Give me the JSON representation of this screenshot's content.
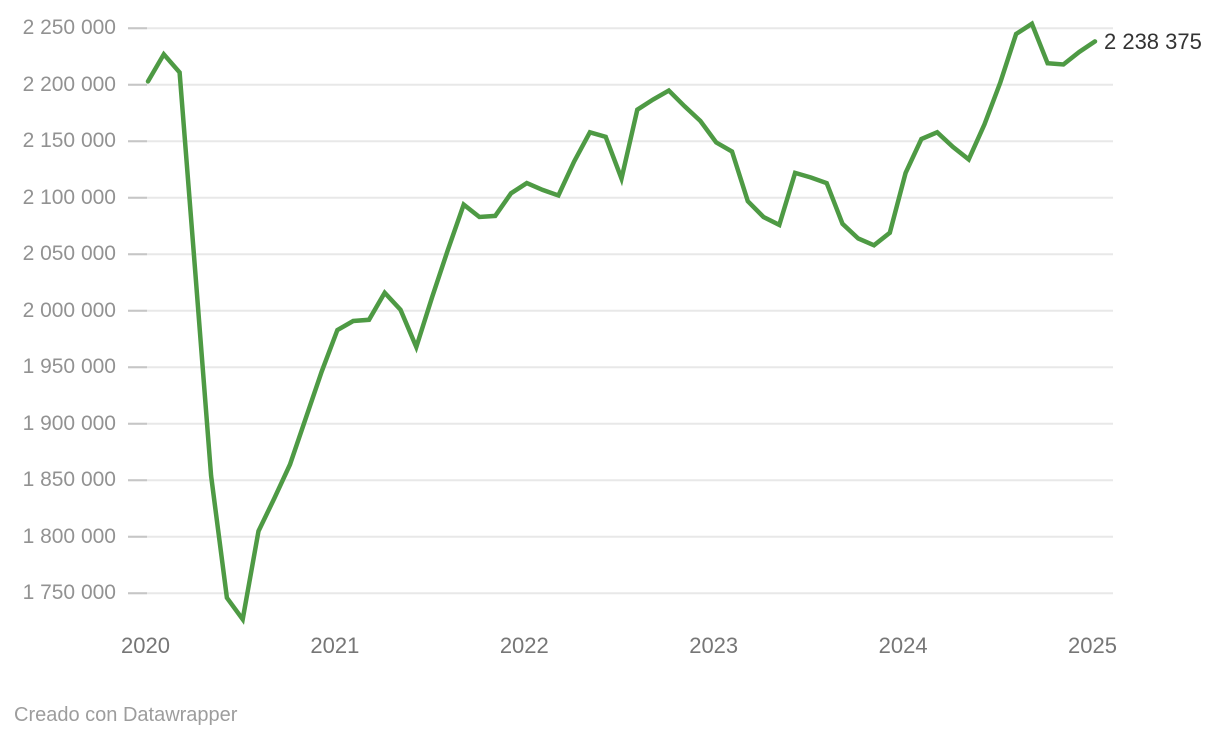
{
  "chart_data": {
    "type": "line",
    "title": "",
    "xlabel": "",
    "ylabel": "",
    "legend": "none",
    "grid": "horizontal",
    "line_color": "#4e9a44",
    "gridline_color": "#e8e8e8",
    "tick_stub_color": "#c6c6c6",
    "ylim": [
      1725000,
      2258000
    ],
    "end_value_label": "2 238 375",
    "end_value": 2238375,
    "y_ticks": [
      {
        "label": "2 250 000",
        "value": 2250000
      },
      {
        "label": "2 200 000",
        "value": 2200000
      },
      {
        "label": "2 150 000",
        "value": 2150000
      },
      {
        "label": "2 100 000",
        "value": 2100000
      },
      {
        "label": "2 050 000",
        "value": 2050000
      },
      {
        "label": "2 000 000",
        "value": 2000000
      },
      {
        "label": "1 950 000",
        "value": 1950000
      },
      {
        "label": "1 900 000",
        "value": 1900000
      },
      {
        "label": "1 850 000",
        "value": 1850000
      },
      {
        "label": "1 800 000",
        "value": 1800000
      },
      {
        "label": "1 750 000",
        "value": 1750000
      }
    ],
    "x_ticks": [
      {
        "label": "2020",
        "month_index": 0
      },
      {
        "label": "2021",
        "month_index": 12
      },
      {
        "label": "2022",
        "month_index": 24
      },
      {
        "label": "2023",
        "month_index": 36
      },
      {
        "label": "2024",
        "month_index": 48
      },
      {
        "label": "2025",
        "month_index": 60
      }
    ],
    "points": [
      [
        "2020-01",
        2203000
      ],
      [
        "2020-02",
        2227000
      ],
      [
        "2020-03",
        2211000
      ],
      [
        "2020-04",
        2034000
      ],
      [
        "2020-05",
        1854000
      ],
      [
        "2020-06",
        1746000
      ],
      [
        "2020-07",
        1727000
      ],
      [
        "2020-08",
        1805000
      ],
      [
        "2020-09",
        1834000
      ],
      [
        "2020-10",
        1864000
      ],
      [
        "2020-11",
        1905000
      ],
      [
        "2020-12",
        1946000
      ],
      [
        "2021-01",
        1983000
      ],
      [
        "2021-02",
        1991000
      ],
      [
        "2021-03",
        1992000
      ],
      [
        "2021-04",
        2016000
      ],
      [
        "2021-05",
        2001000
      ],
      [
        "2021-06",
        1968000
      ],
      [
        "2021-07",
        2012000
      ],
      [
        "2021-08",
        2054000
      ],
      [
        "2021-09",
        2094000
      ],
      [
        "2021-10",
        2083000
      ],
      [
        "2021-11",
        2084000
      ],
      [
        "2021-12",
        2104000
      ],
      [
        "2022-01",
        2113000
      ],
      [
        "2022-02",
        2107000
      ],
      [
        "2022-03",
        2102000
      ],
      [
        "2022-04",
        2132000
      ],
      [
        "2022-05",
        2158000
      ],
      [
        "2022-06",
        2154000
      ],
      [
        "2022-07",
        2117000
      ],
      [
        "2022-08",
        2178000
      ],
      [
        "2022-09",
        2187000
      ],
      [
        "2022-10",
        2195000
      ],
      [
        "2022-11",
        2181000
      ],
      [
        "2022-12",
        2168000
      ],
      [
        "2023-01",
        2149000
      ],
      [
        "2023-02",
        2141000
      ],
      [
        "2023-03",
        2097000
      ],
      [
        "2023-04",
        2083000
      ],
      [
        "2023-05",
        2076000
      ],
      [
        "2023-06",
        2122000
      ],
      [
        "2023-07",
        2118000
      ],
      [
        "2023-08",
        2113000
      ],
      [
        "2023-09",
        2077000
      ],
      [
        "2023-10",
        2064000
      ],
      [
        "2023-11",
        2058000
      ],
      [
        "2023-12",
        2069000
      ],
      [
        "2024-01",
        2122000
      ],
      [
        "2024-02",
        2152000
      ],
      [
        "2024-03",
        2158000
      ],
      [
        "2024-04",
        2145000
      ],
      [
        "2024-05",
        2134000
      ],
      [
        "2024-06",
        2165000
      ],
      [
        "2024-07",
        2202000
      ],
      [
        "2024-08",
        2245000
      ],
      [
        "2024-09",
        2254000
      ],
      [
        "2024-10",
        2219000
      ],
      [
        "2024-11",
        2218000
      ],
      [
        "2024-12",
        2229000
      ],
      [
        "2025-01",
        2238375
      ]
    ]
  },
  "footer": {
    "credit": "Creado con Datawrapper"
  }
}
